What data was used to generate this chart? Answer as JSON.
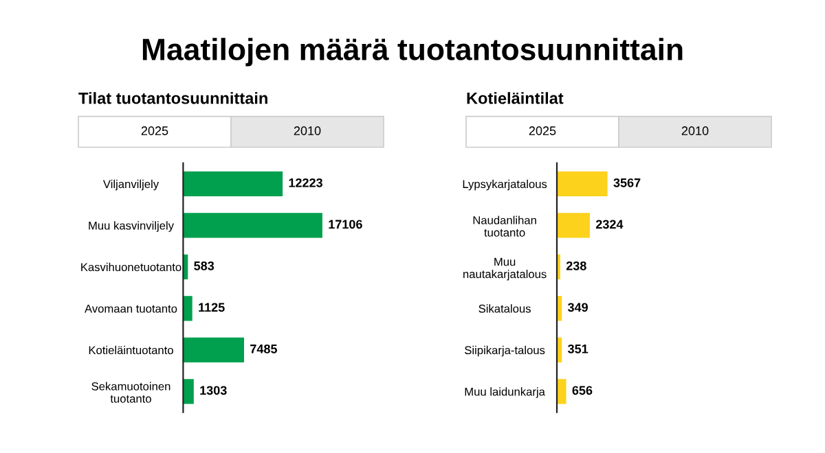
{
  "chart_data": [
    {
      "type": "bar",
      "orientation": "horizontal",
      "title": "Maatilojen määrä tuotantosuunnittain",
      "subtitle": "Tilat tuotantosuunnittain",
      "annotations": [
        "2025",
        "2010"
      ],
      "categories": [
        "Viljanviljely",
        "Muu kasvinviljely",
        "Kasvihuonetuotanto",
        "Avomaan tuotanto",
        "Kotieläintuotanto",
        "Sekamuotoinen\ntuotanto"
      ],
      "values": [
        12223,
        17106,
        583,
        1125,
        7485,
        1303
      ],
      "color": "#00a04e",
      "data_labels": true,
      "grid": false,
      "legend": false
    },
    {
      "type": "bar",
      "orientation": "horizontal",
      "subtitle": "Kotieläintilat",
      "annotations": [
        "2025",
        "2010"
      ],
      "categories": [
        "Lypsykarjatalous",
        "Naudanlihan\ntuotanto",
        "Muu\nnautakarjatalous",
        "Sikatalous",
        "Siipikarja-talous",
        "Muu laidunkarja"
      ],
      "values": [
        3567,
        2324,
        238,
        349,
        351,
        656
      ],
      "color": "#fcd21c",
      "data_labels": true,
      "grid": false,
      "legend": false
    }
  ]
}
